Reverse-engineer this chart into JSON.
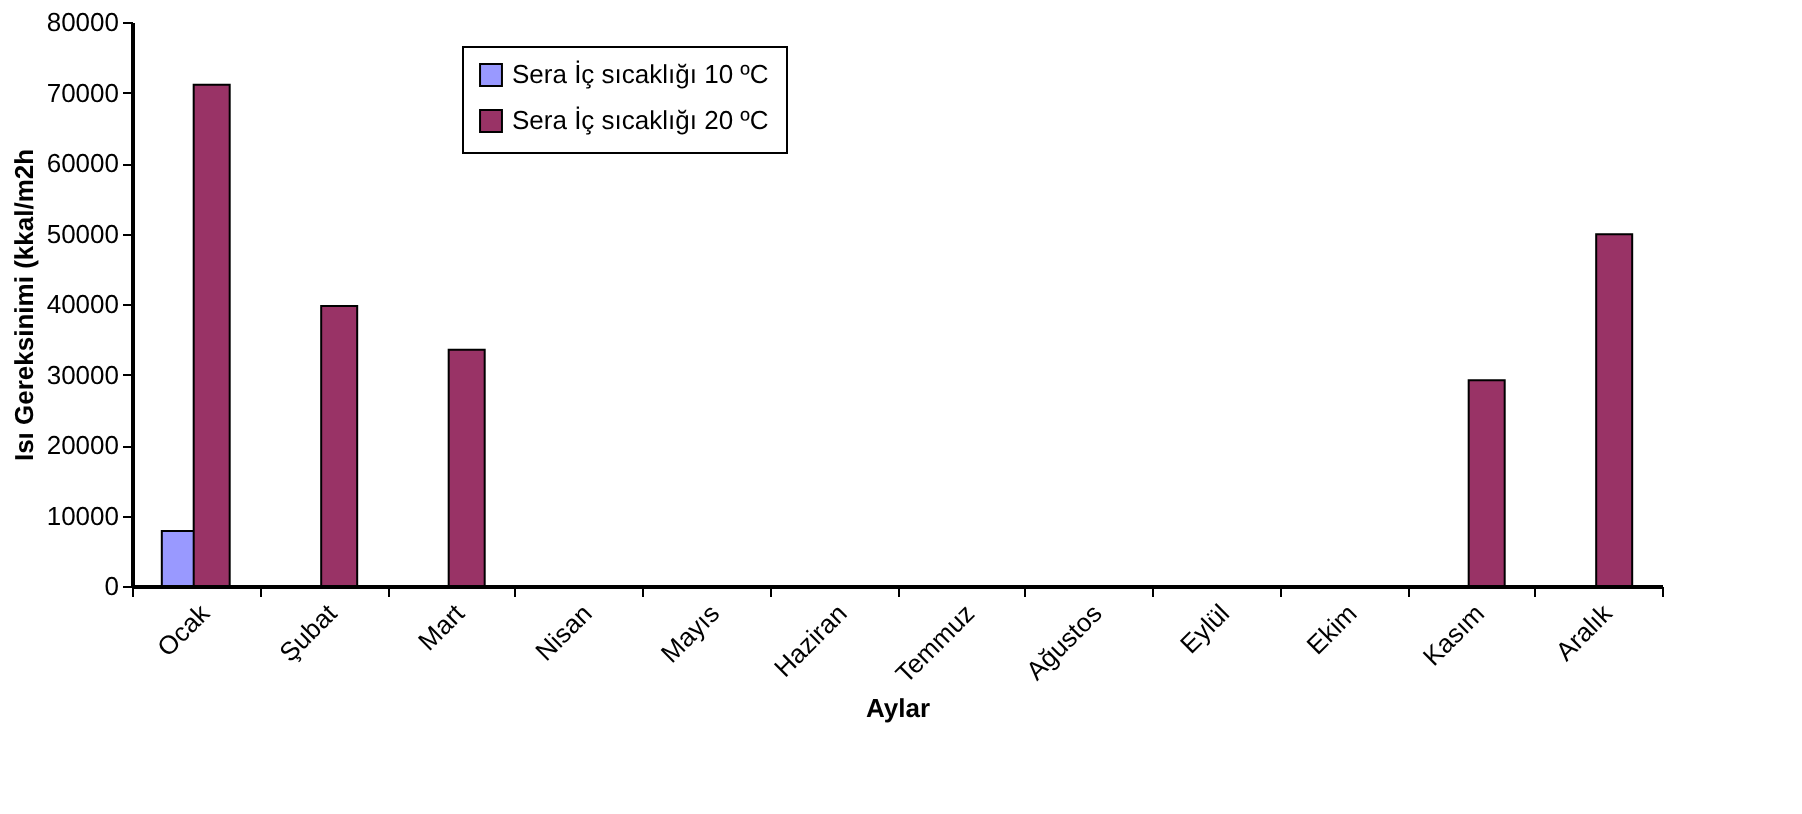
{
  "chart_data": {
    "type": "bar",
    "xlabel": "Aylar",
    "ylabel": "Isı Gereksinimi (kkal/m2h",
    "categories": [
      "Ocak",
      "Şubat",
      "Mart",
      "Nisan",
      "Mayıs",
      "Haziran",
      "Temmuz",
      "Ağustos",
      "Eylül",
      "Ekim",
      "Kasım",
      "Aralık"
    ],
    "series": [
      {
        "name": "Sera İç sıcaklığı 10 ºC",
        "color": "#9999ff",
        "values": [
          7800,
          null,
          null,
          null,
          null,
          null,
          null,
          null,
          null,
          null,
          null,
          null
        ]
      },
      {
        "name": "Sera İç sıcaklığı 20 ºC",
        "color": "#993366",
        "values": [
          71100,
          39700,
          33500,
          null,
          null,
          null,
          null,
          null,
          null,
          null,
          29200,
          49900
        ]
      }
    ],
    "ylim": [
      0,
      80000
    ],
    "yticks": [
      0,
      10000,
      20000,
      30000,
      40000,
      50000,
      60000,
      70000,
      80000
    ],
    "grid": false,
    "legend": "top"
  }
}
